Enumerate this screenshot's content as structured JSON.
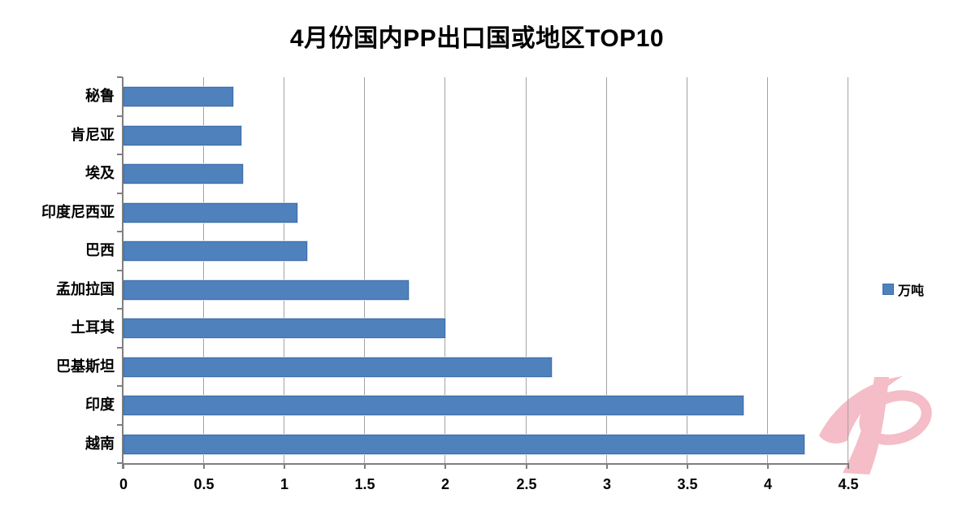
{
  "chart_data": {
    "type": "bar",
    "orientation": "horizontal",
    "title": "4月份国内PP出口国或地区TOP10",
    "categories": [
      "秘鲁",
      "肯尼亚",
      "埃及",
      "印度尼西亚",
      "巴西",
      "孟加拉国",
      "土耳其",
      "巴基斯坦",
      "印度",
      "越南"
    ],
    "values": [
      0.67,
      0.72,
      0.73,
      1.07,
      1.13,
      1.76,
      1.99,
      2.65,
      3.84,
      4.22
    ],
    "xlabel": "",
    "ylabel": "",
    "xlim": [
      0,
      4.5
    ],
    "xticks": [
      0,
      0.5,
      1,
      1.5,
      2,
      2.5,
      3,
      3.5,
      4,
      4.5
    ],
    "xtick_labels": [
      "0",
      "0.5",
      "1",
      "1.5",
      "2",
      "2.5",
      "3",
      "3.5",
      "4",
      "4.5"
    ],
    "grid": "vertical-only",
    "legend_position": "right-middle",
    "bar_color": "#4f81bd",
    "bar_border_color": "#3c6da8",
    "gridline_color": "#a3a3a3",
    "axis_color": "#7f7f7f"
  },
  "legend": {
    "label": "万吨",
    "swatch_color": "#4f81bd"
  },
  "watermark": {
    "name": "pink-swoosh-logo",
    "color": "#f4bdc7"
  }
}
